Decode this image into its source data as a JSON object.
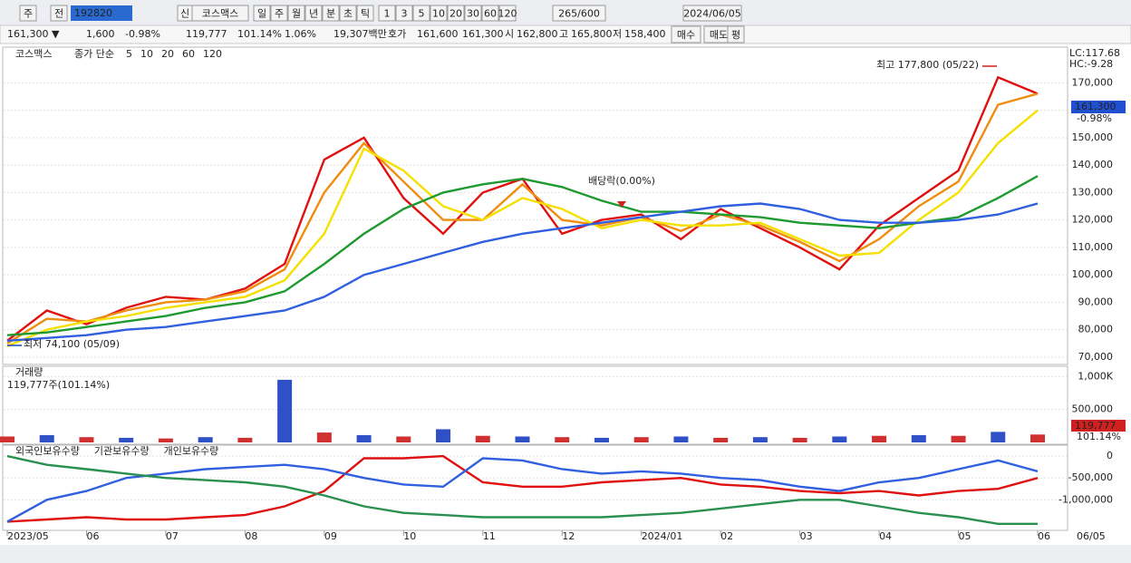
{
  "toolbar": {
    "period": "주",
    "scope": "전",
    "code": "192820",
    "badge": "신",
    "name": "코스맥스",
    "intervals": [
      "일",
      "주",
      "월",
      "년",
      "분",
      "초",
      "틱"
    ],
    "numbers": [
      "1",
      "3",
      "5",
      "10",
      "20",
      "30",
      "60",
      "120"
    ],
    "count": "265/600",
    "date": "2024/06/05"
  },
  "info": {
    "price": "161,300 ▼",
    "change": "1,600",
    "rate": "-0.98%",
    "volume": "119,777",
    "volume_rate": "101.14%",
    "turnover": "1.06%",
    "amount": "19,307백만",
    "quote_label": "호가",
    "ask": "161,600",
    "bid": "161,300",
    "open_label": "시",
    "open": "162,800",
    "high_label": "고",
    "high": "165,800",
    "low_label": "저",
    "low": "158,400",
    "buttons": [
      "매수",
      "매도",
      "평"
    ]
  },
  "chart_data": [
    {
      "type": "line",
      "title": "코스맥스",
      "legend_prefix": "종가 단순",
      "lc": "LC:117.68",
      "hc": "HC:-9.28",
      "high_note": "최고 177,800 (05/22)",
      "low_note": "최저 74,100 (05/09)",
      "dividend_note": "배당락(0.00%)",
      "current_price": "161,300",
      "current_rate": "-0.98%",
      "ylim": [
        68000,
        182000
      ],
      "yticks": [
        {
          "value": 70000,
          "label": "70,000"
        },
        {
          "value": 80000,
          "label": "80,000"
        },
        {
          "value": 90000,
          "label": "90,000"
        },
        {
          "value": 100000,
          "label": "100,000"
        },
        {
          "value": 110000,
          "label": "110,000"
        },
        {
          "value": 120000,
          "label": "120,000"
        },
        {
          "value": 130000,
          "label": "130,000"
        },
        {
          "value": 140000,
          "label": "140,000"
        },
        {
          "value": 150000,
          "label": "150,000"
        },
        {
          "value": 160000,
          "label": "160,000"
        },
        {
          "value": 170000,
          "label": "170,000"
        }
      ],
      "grid": true,
      "series": [
        {
          "name": "5",
          "color": "#e01010",
          "values": [
            76000,
            87000,
            82000,
            88000,
            92000,
            91000,
            95000,
            104000,
            142000,
            150000,
            128000,
            115000,
            130000,
            135000,
            115000,
            120000,
            122000,
            113000,
            124000,
            117000,
            110000,
            102000,
            118000,
            128000,
            138000,
            172000,
            166000
          ]
        },
        {
          "name": "10",
          "color": "#f08c10",
          "values": [
            75000,
            84000,
            83000,
            87000,
            90000,
            91000,
            94000,
            102000,
            130000,
            148000,
            134000,
            120000,
            120000,
            133000,
            120000,
            118000,
            121000,
            116000,
            122000,
            118000,
            112000,
            105000,
            113000,
            125000,
            134000,
            162000,
            166000
          ]
        },
        {
          "name": "20",
          "color": "#f5e000",
          "values": [
            74000,
            80000,
            83000,
            85000,
            88000,
            90000,
            92000,
            98000,
            115000,
            146000,
            138000,
            125000,
            120000,
            128000,
            124000,
            117000,
            120000,
            118000,
            118000,
            119000,
            113000,
            107000,
            108000,
            120000,
            130000,
            148000,
            160000
          ]
        },
        {
          "name": "60",
          "color": "#1e9a30",
          "values": [
            78000,
            79000,
            81000,
            83000,
            85000,
            88000,
            90000,
            94000,
            104000,
            115000,
            124000,
            130000,
            133000,
            135000,
            132000,
            127000,
            123000,
            123000,
            122000,
            121000,
            119000,
            118000,
            117000,
            119000,
            121000,
            128000,
            136000
          ]
        },
        {
          "name": "120",
          "color": "#3060e0",
          "values": [
            76000,
            77000,
            78000,
            80000,
            81000,
            83000,
            85000,
            87000,
            92000,
            100000,
            104000,
            108000,
            112000,
            115000,
            117000,
            119000,
            121000,
            123000,
            125000,
            126000,
            124000,
            120000,
            119000,
            119000,
            120000,
            122000,
            126000
          ]
        }
      ]
    },
    {
      "type": "bar",
      "subtitle": "119,777주(101.14%)",
      "current_value": "119,777",
      "current_rate": "101.14%",
      "ylim": [
        0,
        1100000
      ],
      "yticks": [
        {
          "value": 1000000,
          "label": "1,000K"
        },
        {
          "value": 500000,
          "label": "500,000"
        }
      ],
      "grid": true,
      "series": [
        {
          "name": "거래량",
          "color": "#d03030",
          "values": [
            90000,
            110000,
            80000,
            70000,
            60000,
            80000,
            70000,
            950000,
            150000,
            110000,
            90000,
            200000,
            100000,
            90000,
            80000,
            70000,
            80000,
            90000,
            70000,
            80000,
            70000,
            90000,
            100000,
            110000,
            100000,
            160000,
            119777
          ]
        }
      ]
    },
    {
      "type": "line",
      "current_date_label": "06/05",
      "categories": [
        "2023/05",
        null,
        "06",
        null,
        "07",
        null,
        "08",
        null,
        "09",
        null,
        "10",
        null,
        "11",
        null,
        "12",
        null,
        "2024/01",
        null,
        "02",
        null,
        "03",
        null,
        "04",
        null,
        "05",
        null,
        "06"
      ],
      "ylim": [
        -1700000,
        230000
      ],
      "yticks": [
        0,
        {
          "value": -500000,
          "label": "-500,000"
        },
        {
          "value": -1000000,
          "label": "-1,000,000"
        }
      ],
      "grid": true,
      "series": [
        {
          "name": "외국인보유수량",
          "color": "#e01010",
          "values": [
            -1500000,
            -1450000,
            -1400000,
            -1450000,
            -1450000,
            -1400000,
            -1350000,
            -1150000,
            -800000,
            -50000,
            -50000,
            0,
            -600000,
            -700000,
            -700000,
            -600000,
            -550000,
            -500000,
            -650000,
            -700000,
            -800000,
            -850000,
            -800000,
            -900000,
            -800000,
            -750000,
            -500000
          ]
        },
        {
          "name": "기관보유수량",
          "color": "#3060e0",
          "values": [
            -1500000,
            -1000000,
            -800000,
            -500000,
            -400000,
            -300000,
            -250000,
            -200000,
            -300000,
            -500000,
            -650000,
            -700000,
            -50000,
            -100000,
            -300000,
            -400000,
            -350000,
            -400000,
            -500000,
            -550000,
            -700000,
            -800000,
            -600000,
            -500000,
            -300000,
            -100000,
            -350000
          ]
        },
        {
          "name": "개인보유수량",
          "color": "#2a9050",
          "values": [
            0,
            -200000,
            -300000,
            -400000,
            -500000,
            -550000,
            -600000,
            -700000,
            -900000,
            -1150000,
            -1300000,
            -1350000,
            -1400000,
            -1400000,
            -1400000,
            -1400000,
            -1350000,
            -1300000,
            -1200000,
            -1100000,
            -1000000,
            -1000000,
            -1150000,
            -1300000,
            -1400000,
            -1550000,
            -1550000
          ]
        }
      ]
    }
  ]
}
